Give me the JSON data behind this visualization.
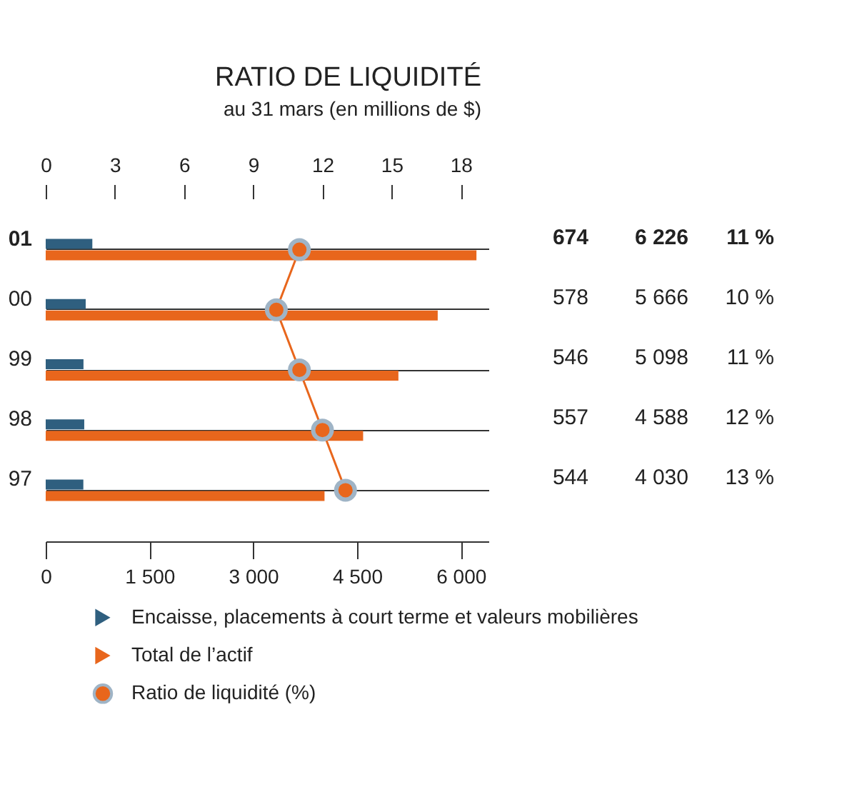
{
  "chart_data": {
    "type": "bar",
    "orientation": "horizontal",
    "title": "RATIO DE LIQUIDITÉ",
    "subtitle": "au 31 mars (en millions de $)",
    "categories": [
      "01",
      "00",
      "99",
      "98",
      "97"
    ],
    "series": [
      {
        "name": "Encaisse, placements à court terme et valeurs mobilières",
        "color": "#2f5f7f",
        "values": [
          674,
          578,
          546,
          557,
          544
        ],
        "value_labels": [
          "674",
          "578",
          "546",
          "557",
          "544"
        ]
      },
      {
        "name": "Total de l’actif",
        "color": "#e8661c",
        "values": [
          6226,
          5666,
          5098,
          4588,
          4030
        ],
        "value_labels": [
          "6 226",
          "5 666",
          "5 098",
          "4 588",
          "4 030"
        ]
      },
      {
        "name": "Ratio de liquidité (%)",
        "type": "line",
        "axis": "x2",
        "color": "#e8661c",
        "values": [
          11,
          10,
          11,
          12,
          13
        ],
        "value_labels": [
          "11 %",
          "10 %",
          "11 %",
          "12 %",
          "13 %"
        ]
      }
    ],
    "xlim": [
      0,
      6400
    ],
    "xticks": [
      0,
      {
        "value": 1500,
        "label": "1 500"
      },
      {
        "value": 3000,
        "label": "3 000"
      },
      {
        "value": 4500,
        "label": "4 500"
      },
      {
        "value": 6000,
        "label": "6 000"
      }
    ],
    "x2lim": [
      0,
      19.2
    ],
    "x2ticks": [
      0,
      3,
      6,
      9,
      12,
      15,
      18
    ],
    "marker": "circle",
    "grid": "y",
    "legend": "bottom"
  }
}
